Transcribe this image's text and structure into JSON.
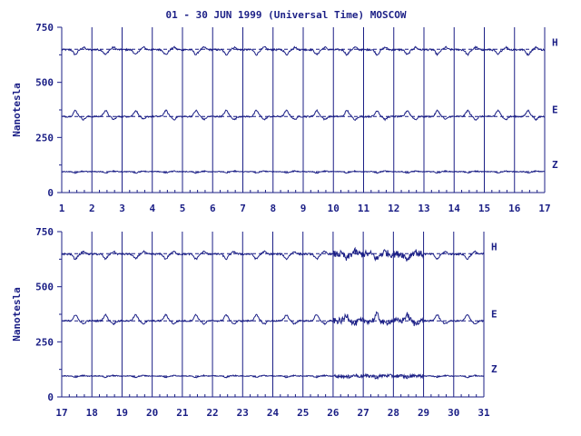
{
  "chart_data": {
    "type": "line",
    "title": "01 - 30 JUN 1999 (Universal Time) MOSCOW",
    "ylabel": "Nanotesla",
    "y_ticks": [
      "750",
      "500",
      "250",
      "0"
    ],
    "ylim": [
      0,
      750
    ],
    "series_labels": [
      "H",
      "E",
      "Z"
    ],
    "baselines": {
      "H": 650,
      "E": 345,
      "Z": 95
    },
    "colors": {
      "line": "#1b1f86",
      "background": "#ffffff"
    },
    "panels": [
      {
        "x_ticks": [
          "1",
          "2",
          "3",
          "4",
          "5",
          "6",
          "7",
          "8",
          "9",
          "10",
          "11",
          "12",
          "13",
          "14",
          "15",
          "16",
          "17"
        ],
        "xlim": [
          1,
          17
        ],
        "series": [
          {
            "name": "H",
            "mean": 648,
            "amp": 22,
            "noise": 8
          },
          {
            "name": "E",
            "mean": 345,
            "amp": 30,
            "noise": 7
          },
          {
            "name": "Z",
            "mean": 95,
            "amp": 6,
            "noise": 4
          }
        ]
      },
      {
        "x_ticks": [
          "17",
          "18",
          "19",
          "20",
          "21",
          "22",
          "23",
          "24",
          "25",
          "26",
          "27",
          "28",
          "29",
          "30",
          "31"
        ],
        "xlim": [
          17,
          31
        ],
        "series": [
          {
            "name": "H",
            "mean": 648,
            "amp": 22,
            "noise": 8
          },
          {
            "name": "E",
            "mean": 345,
            "amp": 30,
            "noise": 7
          },
          {
            "name": "Z",
            "mean": 95,
            "amp": 6,
            "noise": 4
          }
        ]
      }
    ]
  }
}
